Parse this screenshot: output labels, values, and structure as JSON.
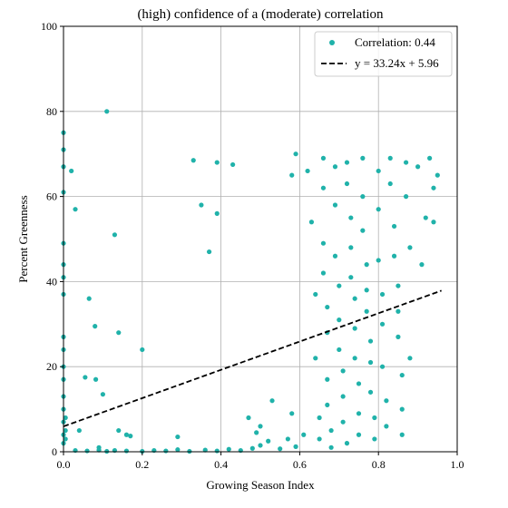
{
  "chart_data": {
    "type": "scatter",
    "title": "(high) confidence of a (moderate) correlation",
    "xlabel": "Growing Season Index",
    "ylabel": "Percent Greenness",
    "xlim": [
      0.0,
      1.0
    ],
    "ylim": [
      0,
      100
    ],
    "xticks": [
      "0.0",
      "0.2",
      "0.4",
      "0.6",
      "0.8",
      "1.0"
    ],
    "yticks": [
      "0",
      "20",
      "40",
      "60",
      "80",
      "100"
    ],
    "grid": true,
    "legend_position": "top-right",
    "colors": {
      "points": "#20b2aa",
      "fit": "#000000",
      "grid": "#b0b0b0"
    },
    "series": [
      {
        "name": "Correlation: 0.44",
        "kind": "scatter",
        "points": [
          [
            0.0,
            75
          ],
          [
            0.0,
            71
          ],
          [
            0.0,
            67
          ],
          [
            0.0,
            61
          ],
          [
            0.0,
            49
          ],
          [
            0.0,
            44
          ],
          [
            0.0,
            41
          ],
          [
            0.0,
            37
          ],
          [
            0.0,
            27
          ],
          [
            0.0,
            24
          ],
          [
            0.0,
            20
          ],
          [
            0.0,
            17
          ],
          [
            0.0,
            13
          ],
          [
            0.0,
            10
          ],
          [
            0.0,
            7
          ],
          [
            0.0,
            4
          ],
          [
            0.0,
            2
          ],
          [
            0.005,
            8
          ],
          [
            0.005,
            5
          ],
          [
            0.005,
            3
          ],
          [
            0.02,
            66
          ],
          [
            0.03,
            57
          ],
          [
            0.04,
            5
          ],
          [
            0.055,
            17.5
          ],
          [
            0.065,
            36
          ],
          [
            0.08,
            29.5
          ],
          [
            0.082,
            17
          ],
          [
            0.09,
            1
          ],
          [
            0.1,
            13.5
          ],
          [
            0.11,
            80
          ],
          [
            0.13,
            51
          ],
          [
            0.14,
            28
          ],
          [
            0.14,
            5
          ],
          [
            0.16,
            4
          ],
          [
            0.17,
            3.7
          ],
          [
            0.2,
            24
          ],
          [
            0.33,
            68.5
          ],
          [
            0.35,
            58
          ],
          [
            0.37,
            47
          ],
          [
            0.39,
            68
          ],
          [
            0.39,
            56
          ],
          [
            0.43,
            67.5
          ],
          [
            0.03,
            0.3
          ],
          [
            0.06,
            0.2
          ],
          [
            0.09,
            0.4
          ],
          [
            0.11,
            0.1
          ],
          [
            0.13,
            0.3
          ],
          [
            0.16,
            0.2
          ],
          [
            0.2,
            0.1
          ],
          [
            0.23,
            0.3
          ],
          [
            0.26,
            0.2
          ],
          [
            0.29,
            0.5
          ],
          [
            0.32,
            0.1
          ],
          [
            0.36,
            0.4
          ],
          [
            0.39,
            0.2
          ],
          [
            0.42,
            0.6
          ],
          [
            0.45,
            0.3
          ],
          [
            0.48,
            0.8
          ],
          [
            0.5,
            1.5
          ],
          [
            0.52,
            2.5
          ],
          [
            0.55,
            0.7
          ],
          [
            0.57,
            3
          ],
          [
            0.59,
            1.2
          ],
          [
            0.47,
            8
          ],
          [
            0.49,
            4.5
          ],
          [
            0.53,
            12
          ],
          [
            0.58,
            9
          ],
          [
            0.61,
            4
          ],
          [
            0.29,
            3.5
          ],
          [
            0.5,
            6
          ],
          [
            0.58,
            65
          ],
          [
            0.59,
            70
          ],
          [
            0.62,
            66
          ],
          [
            0.63,
            54
          ],
          [
            0.64,
            37
          ],
          [
            0.64,
            22
          ],
          [
            0.65,
            8
          ],
          [
            0.65,
            3
          ],
          [
            0.66,
            69
          ],
          [
            0.66,
            62
          ],
          [
            0.66,
            49
          ],
          [
            0.66,
            42
          ],
          [
            0.67,
            34
          ],
          [
            0.67,
            28
          ],
          [
            0.67,
            17
          ],
          [
            0.67,
            11
          ],
          [
            0.68,
            5
          ],
          [
            0.68,
            1
          ],
          [
            0.69,
            67
          ],
          [
            0.69,
            58
          ],
          [
            0.69,
            46
          ],
          [
            0.7,
            39
          ],
          [
            0.7,
            31
          ],
          [
            0.7,
            24
          ],
          [
            0.71,
            19
          ],
          [
            0.71,
            13
          ],
          [
            0.71,
            7
          ],
          [
            0.72,
            2
          ],
          [
            0.72,
            68
          ],
          [
            0.72,
            63
          ],
          [
            0.73,
            55
          ],
          [
            0.73,
            48
          ],
          [
            0.73,
            41
          ],
          [
            0.74,
            36
          ],
          [
            0.74,
            29
          ],
          [
            0.74,
            22
          ],
          [
            0.75,
            16
          ],
          [
            0.75,
            9
          ],
          [
            0.75,
            4
          ],
          [
            0.76,
            69
          ],
          [
            0.76,
            60
          ],
          [
            0.76,
            52
          ],
          [
            0.77,
            44
          ],
          [
            0.77,
            38
          ],
          [
            0.77,
            33
          ],
          [
            0.78,
            26
          ],
          [
            0.78,
            21
          ],
          [
            0.78,
            14
          ],
          [
            0.79,
            8
          ],
          [
            0.79,
            3
          ],
          [
            0.8,
            66
          ],
          [
            0.8,
            57
          ],
          [
            0.8,
            45
          ],
          [
            0.81,
            37
          ],
          [
            0.81,
            30
          ],
          [
            0.81,
            20
          ],
          [
            0.82,
            12
          ],
          [
            0.82,
            6
          ],
          [
            0.83,
            69
          ],
          [
            0.83,
            63
          ],
          [
            0.84,
            53
          ],
          [
            0.84,
            46
          ],
          [
            0.85,
            39
          ],
          [
            0.85,
            33
          ],
          [
            0.85,
            27
          ],
          [
            0.86,
            18
          ],
          [
            0.86,
            10
          ],
          [
            0.86,
            4
          ],
          [
            0.87,
            68
          ],
          [
            0.87,
            60
          ],
          [
            0.88,
            48
          ],
          [
            0.88,
            22
          ],
          [
            0.9,
            67
          ],
          [
            0.91,
            44
          ],
          [
            0.92,
            55
          ],
          [
            0.93,
            69
          ],
          [
            0.94,
            62
          ],
          [
            0.94,
            54
          ],
          [
            0.95,
            65
          ]
        ]
      },
      {
        "name": "y = 33.24x + 5.96",
        "kind": "line",
        "slope": 33.24,
        "intercept": 5.96,
        "x_range": [
          0.0,
          0.96
        ]
      }
    ]
  }
}
